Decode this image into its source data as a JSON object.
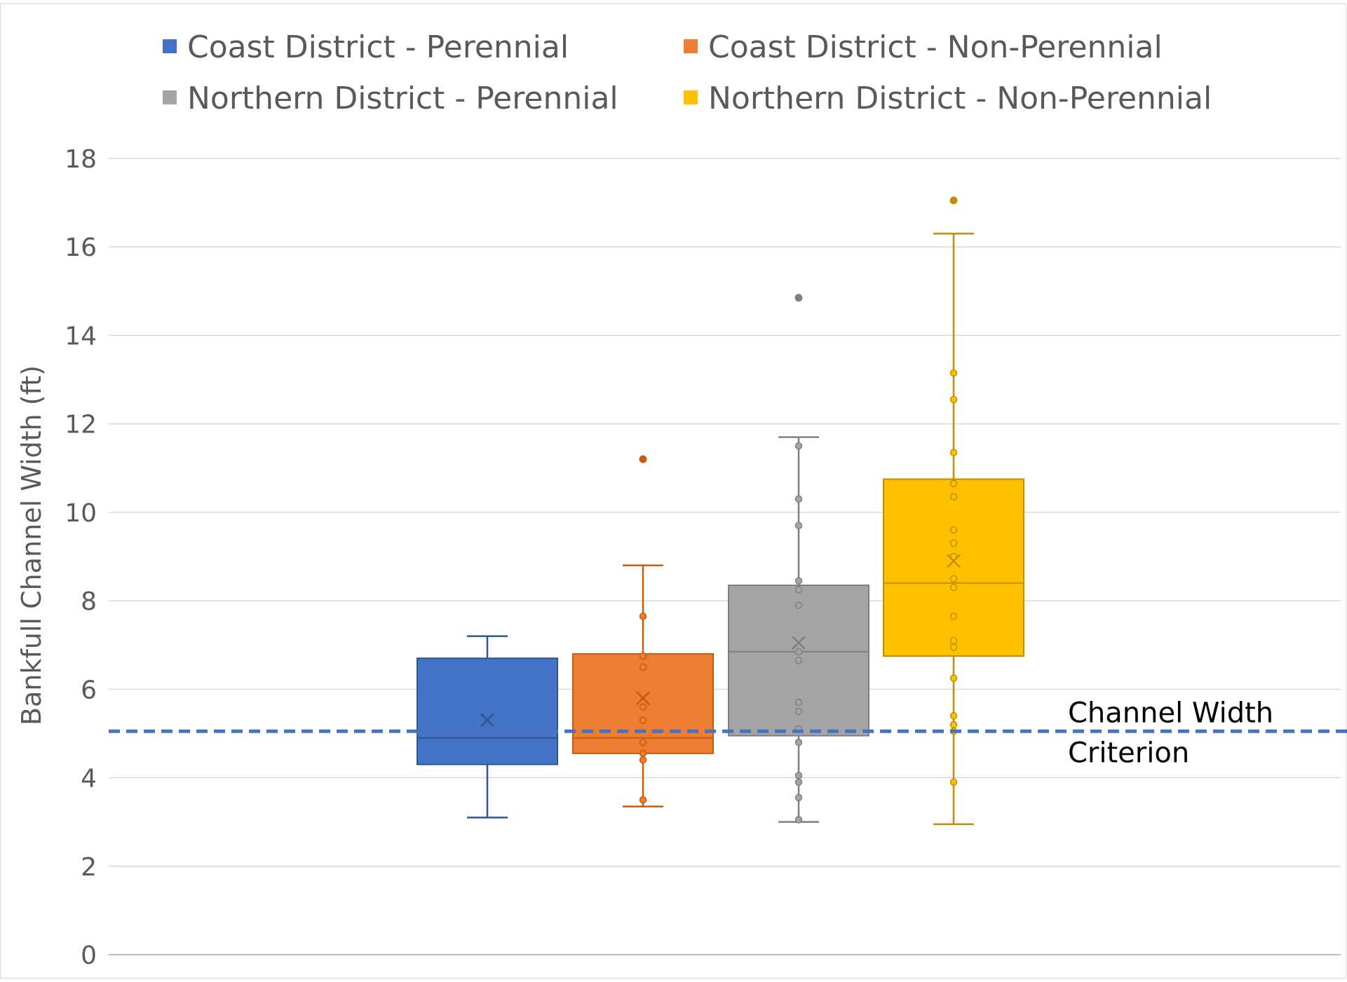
{
  "chart_data": {
    "type": "box",
    "ylabel": "Bankfull Channel Width (ft)",
    "ylim": [
      0,
      18
    ],
    "yticks": [
      0,
      2,
      4,
      6,
      8,
      10,
      12,
      14,
      16,
      18
    ],
    "grid": "horizontal",
    "legend_position": "top",
    "reference_line": {
      "label_line1": "Channel Width",
      "label_line2": "Criterion",
      "value": 5.05,
      "color": "#4472C4",
      "style": "dashed"
    },
    "series": [
      {
        "name": "Coast District - Perennial",
        "color": "#4472C4",
        "whisker_low": 3.1,
        "q1": 4.3,
        "median": 4.9,
        "q3": 6.7,
        "whisker_high": 7.2,
        "mean": 5.3,
        "points": [],
        "outliers": []
      },
      {
        "name": "Coast District - Non-Perennial",
        "color": "#ED7D31",
        "whisker_low": 3.35,
        "q1": 4.55,
        "median": 4.9,
        "q3": 6.8,
        "whisker_high": 8.8,
        "mean": 5.8,
        "points": [
          3.5,
          4.4,
          4.55,
          4.8,
          5.3,
          5.6,
          6.5,
          6.75,
          7.65
        ],
        "outliers": [
          11.2
        ]
      },
      {
        "name": "Northern District - Perennial",
        "color": "#A5A5A5",
        "whisker_low": 3.0,
        "q1": 4.95,
        "median": 6.85,
        "q3": 8.35,
        "whisker_high": 11.7,
        "mean": 7.05,
        "points": [
          3.05,
          3.55,
          3.9,
          4.05,
          4.8,
          5.1,
          5.5,
          5.7,
          6.65,
          6.85,
          7.9,
          8.25,
          8.45,
          9.7,
          10.3,
          11.5
        ],
        "outliers": [
          14.85
        ]
      },
      {
        "name": "Northern District - Non-Perennial",
        "color": "#FFC000",
        "whisker_low": 2.95,
        "q1": 6.75,
        "median": 8.4,
        "q3": 10.75,
        "whisker_high": 16.3,
        "mean": 8.9,
        "points": [
          3.9,
          5.05,
          5.2,
          5.4,
          6.25,
          6.95,
          7.1,
          7.65,
          8.3,
          8.5,
          9.0,
          9.3,
          9.6,
          10.35,
          10.65,
          11.35,
          12.55,
          13.15
        ],
        "outliers": [
          17.05
        ]
      }
    ]
  }
}
